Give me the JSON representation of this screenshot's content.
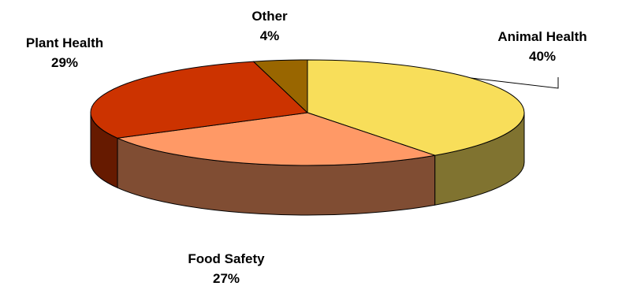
{
  "chart_data": {
    "type": "pie",
    "title": "",
    "categories": [
      "Animal Health",
      "Food Safety",
      "Plant Health",
      "Other"
    ],
    "values": [
      40,
      27,
      29,
      4
    ],
    "value_labels": [
      "40%",
      "27%",
      "29%",
      "4%"
    ],
    "colors": {
      "top": [
        "#F8DE5A",
        "#FF9966",
        "#CC3300",
        "#996600"
      ],
      "side": [
        "#807330",
        "#804D33",
        "#661A00",
        "#4D3300"
      ]
    },
    "style": "3d",
    "legend": "none"
  }
}
